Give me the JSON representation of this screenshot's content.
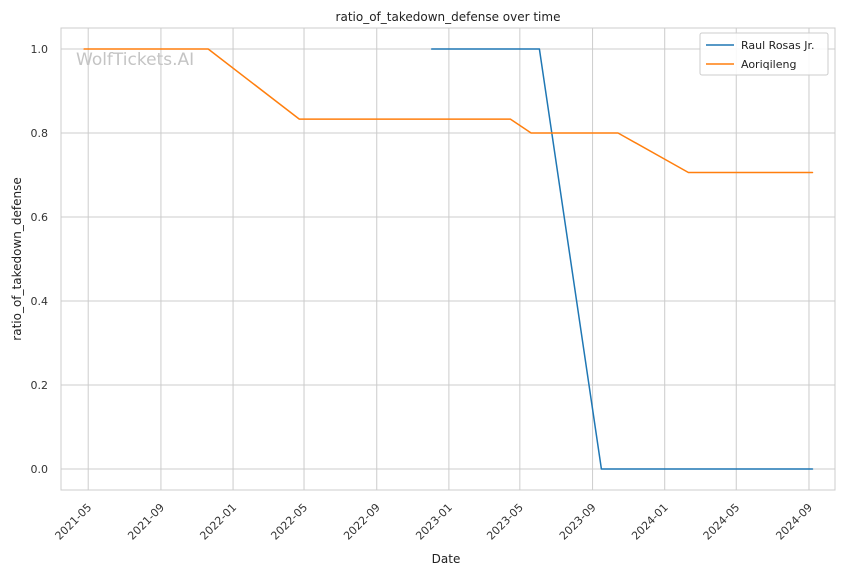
{
  "chart_data": {
    "type": "line",
    "title": "ratio_of_takedown_defense over time",
    "xlabel": "Date",
    "ylabel": "ratio_of_takedown_defense",
    "watermark": "WolfTickets.AI",
    "ylim": [
      -0.05,
      1.05
    ],
    "xlim": [
      "2021-03-16",
      "2024-10-15"
    ],
    "grid": true,
    "legend_position": "top-right",
    "x_ticks": [
      "2021-05-01",
      "2021-09-01",
      "2022-01-01",
      "2022-05-01",
      "2022-09-01",
      "2023-01-01",
      "2023-05-01",
      "2023-09-01",
      "2024-01-01",
      "2024-05-01",
      "2024-09-01"
    ],
    "x_tick_labels": [
      "2021-05",
      "2021-09",
      "2022-01",
      "2022-05",
      "2022-09",
      "2023-01",
      "2023-05",
      "2023-09",
      "2024-01",
      "2024-05",
      "2024-09"
    ],
    "y_ticks": [
      0.0,
      0.2,
      0.4,
      0.6,
      0.8,
      1.0
    ],
    "y_tick_labels": [
      "0.0",
      "0.2",
      "0.4",
      "0.6",
      "0.8",
      "1.0"
    ],
    "series": [
      {
        "name": "Raul Rosas Jr.",
        "color": "#1f77b4",
        "points": [
          {
            "x": "2022-12-03",
            "y": 1.0
          },
          {
            "x": "2023-06-03",
            "y": 1.0
          },
          {
            "x": "2023-09-16",
            "y": 0.0
          },
          {
            "x": "2024-09-07",
            "y": 0.0
          }
        ]
      },
      {
        "name": "Aoriqileng",
        "color": "#ff7f0e",
        "points": [
          {
            "x": "2021-04-24",
            "y": 1.0
          },
          {
            "x": "2021-11-20",
            "y": 1.0
          },
          {
            "x": "2022-04-23",
            "y": 0.833
          },
          {
            "x": "2023-04-15",
            "y": 0.833
          },
          {
            "x": "2023-05-20",
            "y": 0.8
          },
          {
            "x": "2023-10-14",
            "y": 0.8
          },
          {
            "x": "2024-02-10",
            "y": 0.706
          },
          {
            "x": "2024-09-07",
            "y": 0.706
          }
        ]
      }
    ]
  }
}
